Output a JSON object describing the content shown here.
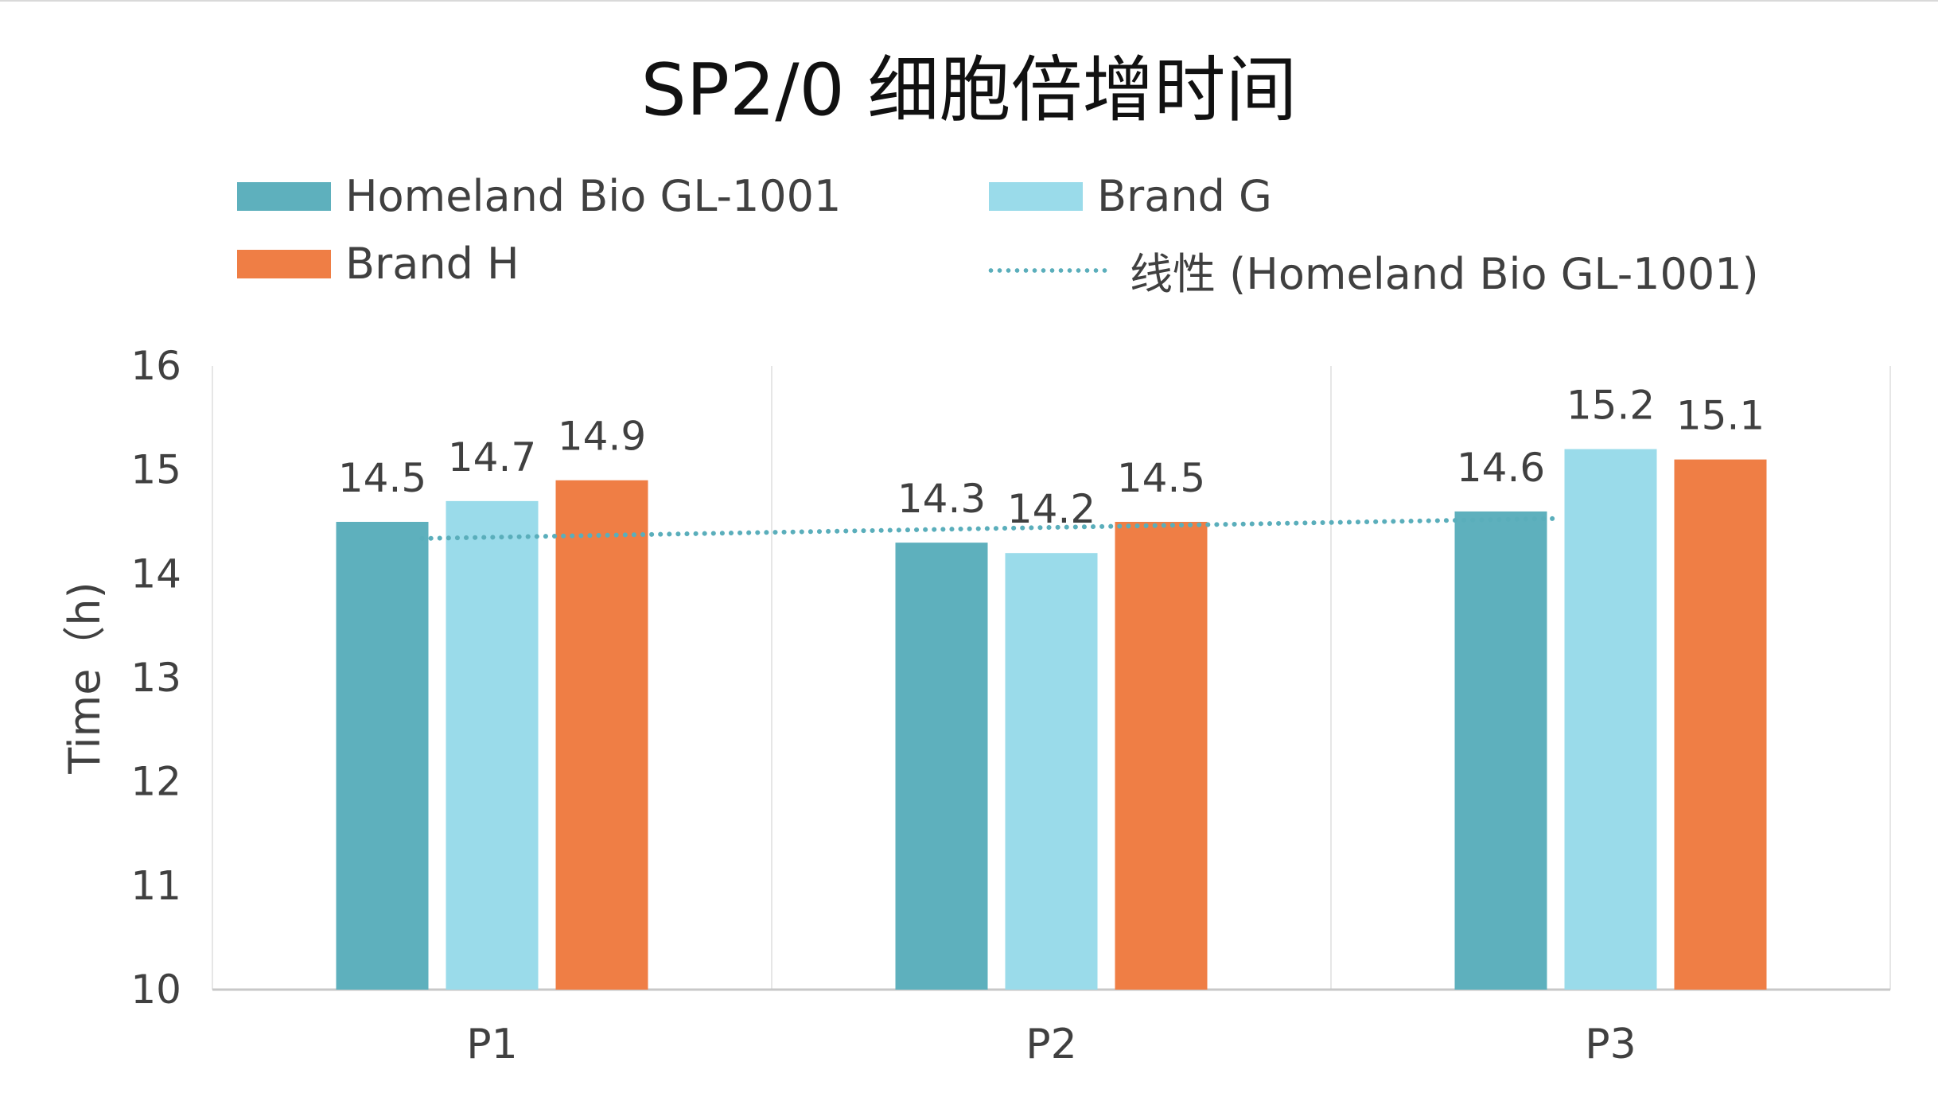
{
  "chart_data": {
    "type": "bar",
    "title": "SP2/0 细胞倍增时间",
    "xlabel": "",
    "ylabel": "Time（h)",
    "categories": [
      "P1",
      "P2",
      "P3"
    ],
    "series": [
      {
        "name": "Homeland Bio GL-1001",
        "values": [
          14.5,
          14.3,
          14.6
        ],
        "color": "#5eb0bd"
      },
      {
        "name": "Brand G",
        "values": [
          14.7,
          14.2,
          15.2
        ],
        "color": "#9adbea"
      },
      {
        "name": "Brand H",
        "values": [
          14.9,
          14.5,
          15.1
        ],
        "color": "#ef7e45"
      }
    ],
    "trendline": {
      "name": "线性 (Homeland Bio GL-1001)",
      "type": "linear",
      "series": "Homeland Bio GL-1001",
      "color": "#5aaebb",
      "style": "dotted"
    },
    "ylim": [
      10,
      16
    ],
    "yticks": [
      "10",
      "11",
      "12",
      "13",
      "14",
      "15",
      "16"
    ],
    "grid": "vertical-category-separators",
    "legend_position": "top"
  }
}
